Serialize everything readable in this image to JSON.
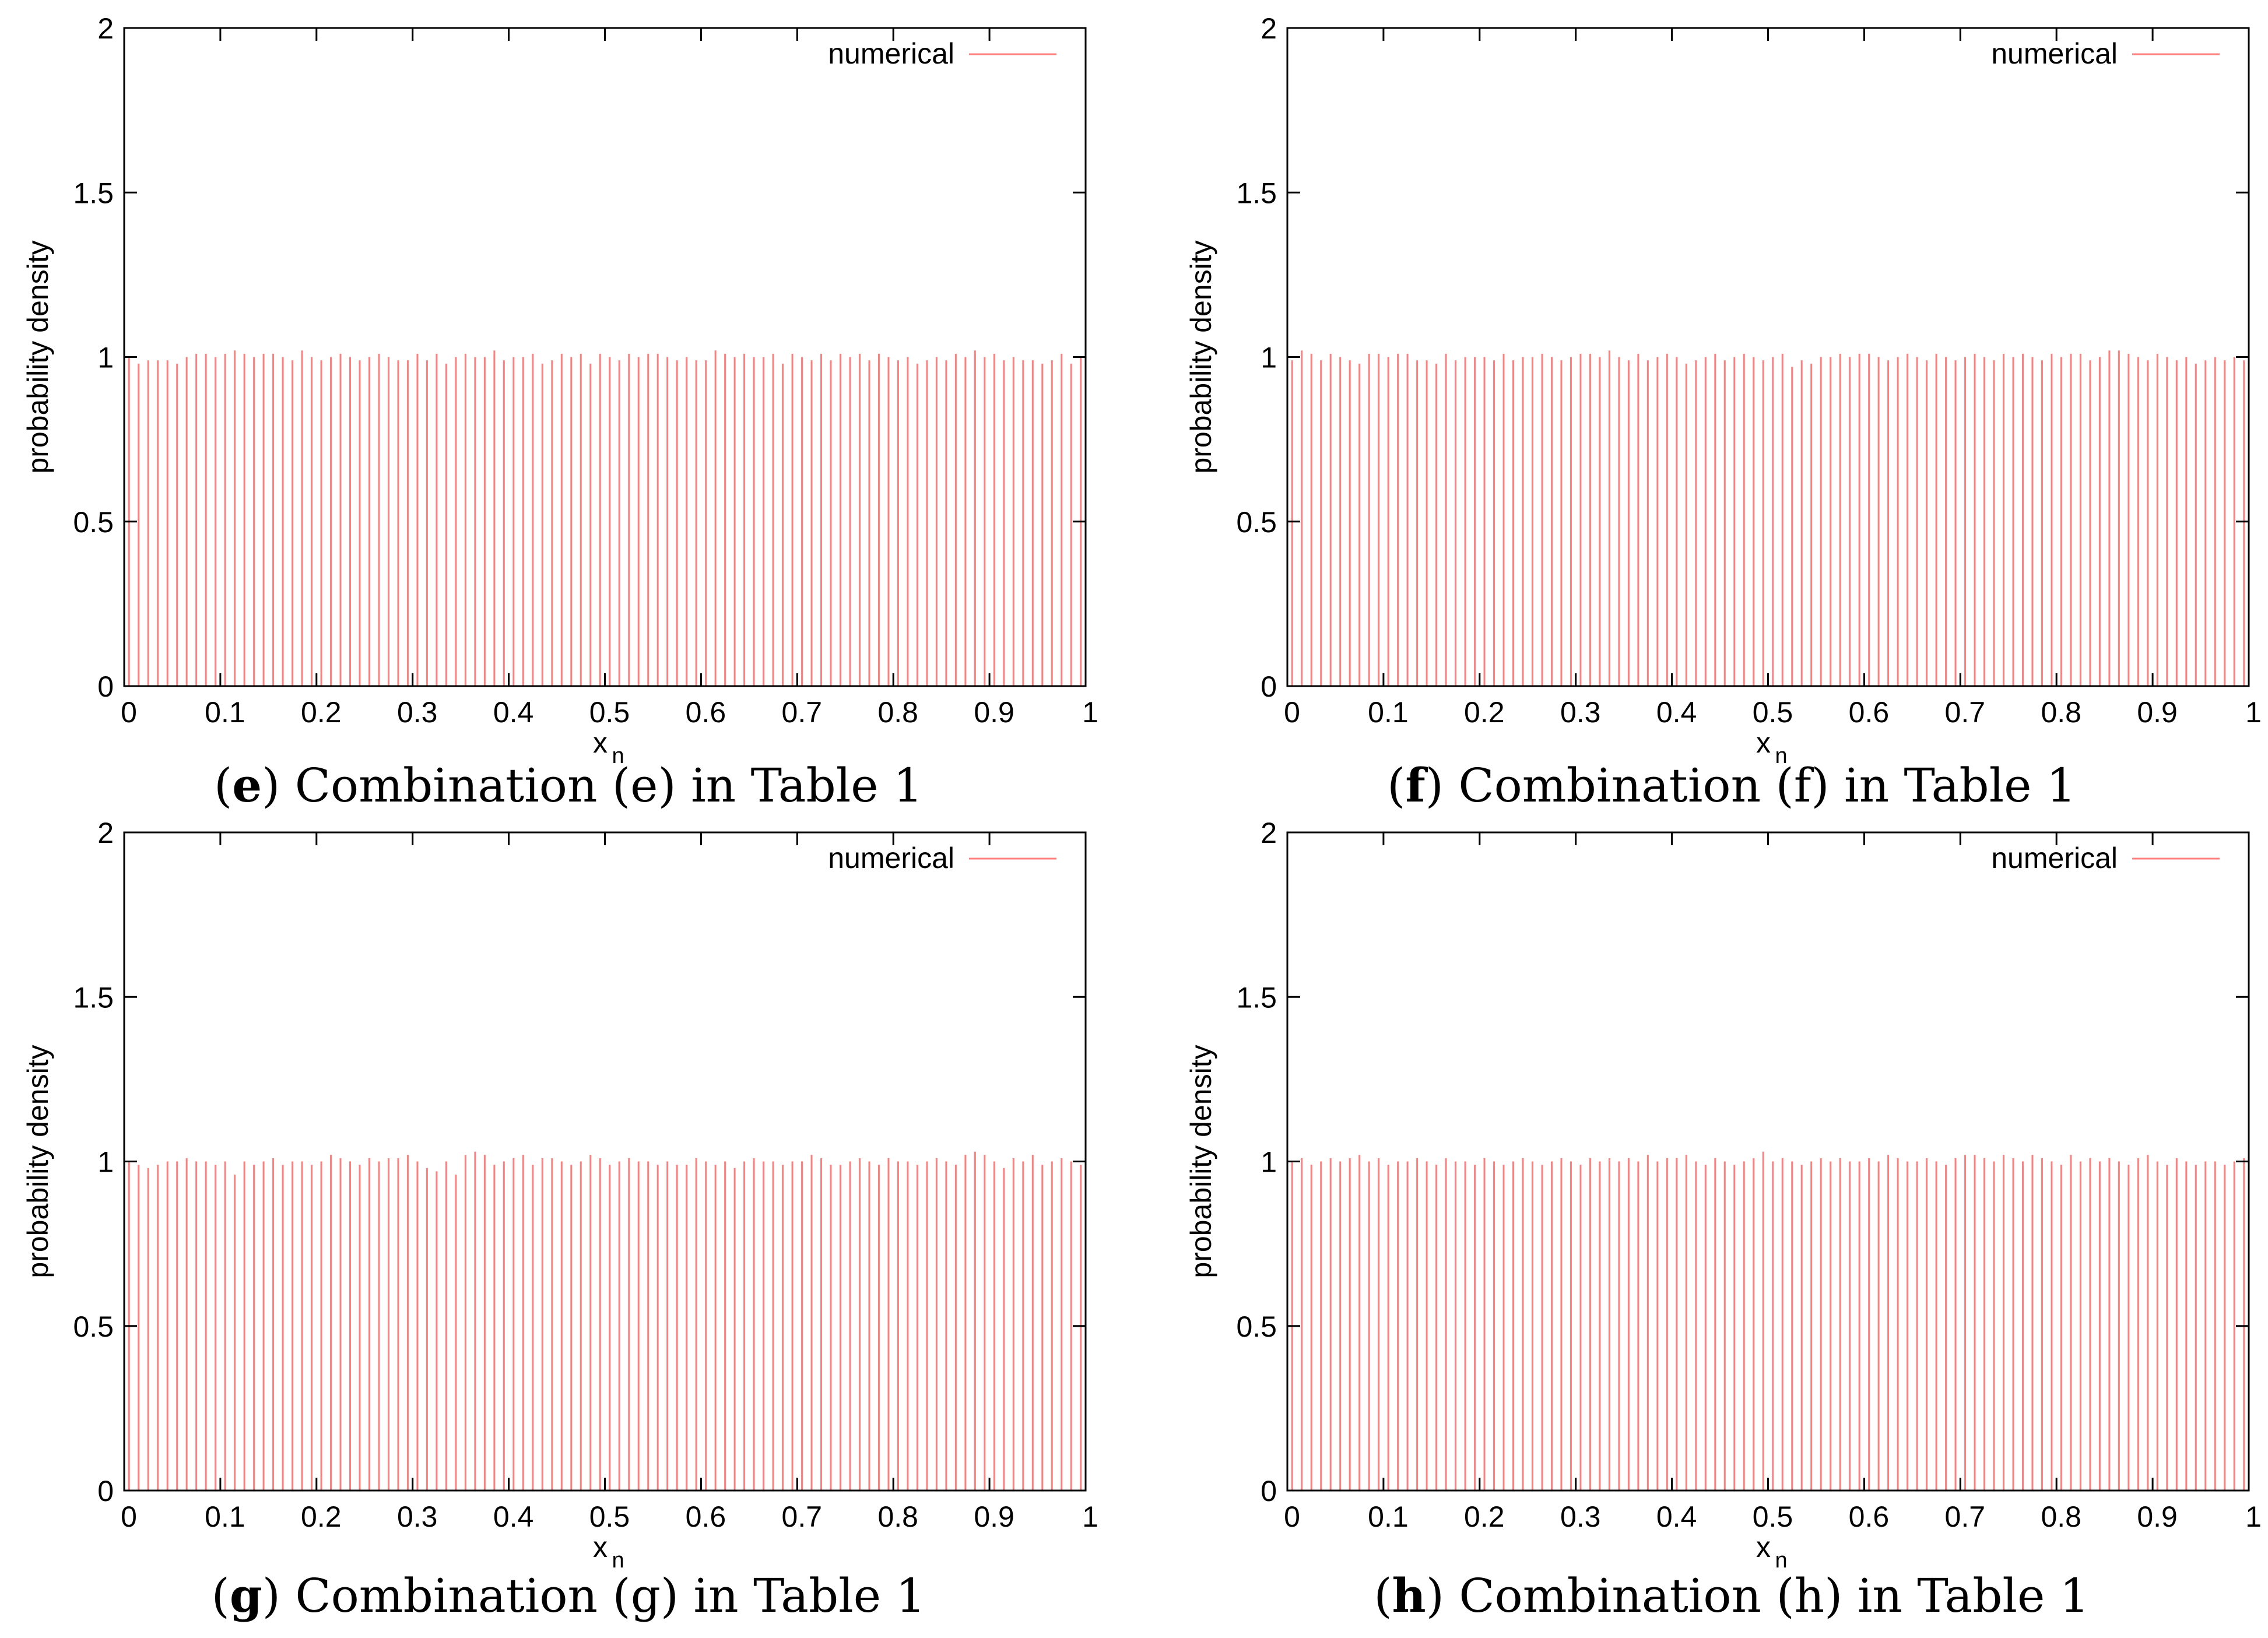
{
  "colors": {
    "series": "#ff7f7f",
    "axis": "#000000"
  },
  "chart_data": [
    {
      "type": "bar",
      "panel_letter": "e",
      "caption": "Combination (e) in Table 1",
      "xlabel": "x",
      "xlabel_sub": "n",
      "ylabel": "probability density",
      "xlim": [
        0,
        1
      ],
      "ylim": [
        0,
        2
      ],
      "xticks": [
        "0",
        "0.1",
        "0.2",
        "0.3",
        "0.4",
        "0.5",
        "0.6",
        "0.7",
        "0.8",
        "0.9",
        "1"
      ],
      "yticks": [
        "0",
        "0.5",
        "1",
        "1.5",
        "2"
      ],
      "legend": "numerical",
      "legend_position": "top-right",
      "bin_width": 0.01,
      "values": [
        1.0,
        0.98,
        0.99,
        0.99,
        0.99,
        0.98,
        1.0,
        1.01,
        1.01,
        1.0,
        1.01,
        1.02,
        1.01,
        1.0,
        1.01,
        1.01,
        1.0,
        0.99,
        1.02,
        1.0,
        0.99,
        1.0,
        1.01,
        1.0,
        0.99,
        1.0,
        1.01,
        1.0,
        0.99,
        0.99,
        1.01,
        0.99,
        1.01,
        0.98,
        1.0,
        1.01,
        1.0,
        1.0,
        1.02,
        0.99,
        1.0,
        1.0,
        1.01,
        0.98,
        0.99,
        1.01,
        1.0,
        1.01,
        0.98,
        1.01,
        1.0,
        0.99,
        1.01,
        1.0,
        1.01,
        1.01,
        1.0,
        0.99,
        1.0,
        0.99,
        0.99,
        1.02,
        1.01,
        1.0,
        1.01,
        1.0,
        1.0,
        1.01,
        0.98,
        1.01,
        1.0,
        0.99,
        1.01,
        0.99,
        1.01,
        1.0,
        1.01,
        0.99,
        1.01,
        1.0,
        0.99,
        1.0,
        0.98,
        0.99,
        1.0,
        0.99,
        1.01,
        1.0,
        1.02,
        1.0,
        1.01,
        0.99,
        1.0,
        0.99,
        0.99,
        0.98,
        0.99,
        1.01,
        0.98,
        1.0
      ]
    },
    {
      "type": "bar",
      "panel_letter": "f",
      "caption": "Combination (f) in Table 1",
      "xlabel": "x",
      "xlabel_sub": "n",
      "ylabel": "probability density",
      "xlim": [
        0,
        1
      ],
      "ylim": [
        0,
        2
      ],
      "xticks": [
        "0",
        "0.1",
        "0.2",
        "0.3",
        "0.4",
        "0.5",
        "0.6",
        "0.7",
        "0.8",
        "0.9",
        "1"
      ],
      "yticks": [
        "0",
        "0.5",
        "1",
        "1.5",
        "2"
      ],
      "legend": "numerical",
      "legend_position": "top-right",
      "bin_width": 0.01,
      "values": [
        0.99,
        1.02,
        1.01,
        0.99,
        1.01,
        1.0,
        0.99,
        0.98,
        1.01,
        1.01,
        1.0,
        1.01,
        1.01,
        0.99,
        0.99,
        0.98,
        1.01,
        0.99,
        1.0,
        1.0,
        1.0,
        0.99,
        1.01,
        0.99,
        1.0,
        1.0,
        1.01,
        1.0,
        0.99,
        1.0,
        1.01,
        1.01,
        1.0,
        1.02,
        1.0,
        0.99,
        1.01,
        0.99,
        1.0,
        1.01,
        1.0,
        0.98,
        0.99,
        1.0,
        1.01,
        0.99,
        1.0,
        1.01,
        1.0,
        0.99,
        1.0,
        1.01,
        0.97,
        0.99,
        0.98,
        1.0,
        1.0,
        1.01,
        1.0,
        1.01,
        1.01,
        1.0,
        0.99,
        1.0,
        1.01,
        1.0,
        0.99,
        1.01,
        1.0,
        0.99,
        1.0,
        1.01,
        1.0,
        0.99,
        1.01,
        1.0,
        1.01,
        1.0,
        0.99,
        1.01,
        1.0,
        1.01,
        1.01,
        0.99,
        1.0,
        1.02,
        1.02,
        1.01,
        1.0,
        0.99,
        1.01,
        1.0,
        0.99,
        1.0,
        0.98,
        0.99,
        1.0,
        0.99,
        1.0,
        0.99
      ]
    },
    {
      "type": "bar",
      "panel_letter": "g",
      "caption": "Combination (g) in Table 1",
      "xlabel": "x",
      "xlabel_sub": "n",
      "ylabel": "probability density",
      "xlim": [
        0,
        1
      ],
      "ylim": [
        0,
        2
      ],
      "xticks": [
        "0",
        "0.1",
        "0.2",
        "0.3",
        "0.4",
        "0.5",
        "0.6",
        "0.7",
        "0.8",
        "0.9",
        "1"
      ],
      "yticks": [
        "0",
        "0.5",
        "1",
        "1.5",
        "2"
      ],
      "legend": "numerical",
      "legend_position": "top-right",
      "bin_width": 0.01,
      "values": [
        1.0,
        0.99,
        0.98,
        0.99,
        1.0,
        1.0,
        1.01,
        1.0,
        1.0,
        0.99,
        1.0,
        0.96,
        1.0,
        0.99,
        1.0,
        1.01,
        0.99,
        1.0,
        1.0,
        0.99,
        1.0,
        1.02,
        1.01,
        1.0,
        0.99,
        1.01,
        1.0,
        1.01,
        1.01,
        1.02,
        1.0,
        0.98,
        0.97,
        1.0,
        0.96,
        1.02,
        1.03,
        1.02,
        0.99,
        1.0,
        1.01,
        1.02,
        0.99,
        1.01,
        1.01,
        1.0,
        0.99,
        1.0,
        1.02,
        1.01,
        0.99,
        1.0,
        1.01,
        1.0,
        1.0,
        0.99,
        1.0,
        0.99,
        0.99,
        1.01,
        1.0,
        0.99,
        1.0,
        0.98,
        1.0,
        1.01,
        1.0,
        1.0,
        0.99,
        1.0,
        1.0,
        1.02,
        1.01,
        0.99,
        0.99,
        1.0,
        1.01,
        1.0,
        0.99,
        1.01,
        1.0,
        1.0,
        0.99,
        1.0,
        1.01,
        1.0,
        0.99,
        1.02,
        1.03,
        1.02,
        1.0,
        0.98,
        1.01,
        1.0,
        1.02,
        0.99,
        1.0,
        1.01,
        1.0,
        0.99
      ]
    },
    {
      "type": "bar",
      "panel_letter": "h",
      "caption": "Combination (h) in Table 1",
      "xlabel": "x",
      "xlabel_sub": "n",
      "ylabel": "probability density",
      "xlim": [
        0,
        1
      ],
      "ylim": [
        0,
        2
      ],
      "xticks": [
        "0",
        "0.1",
        "0.2",
        "0.3",
        "0.4",
        "0.5",
        "0.6",
        "0.7",
        "0.8",
        "0.9",
        "1"
      ],
      "yticks": [
        "0",
        "0.5",
        "1",
        "1.5",
        "2"
      ],
      "legend": "numerical",
      "legend_position": "top-right",
      "bin_width": 0.01,
      "values": [
        1.0,
        1.01,
        0.99,
        1.0,
        1.01,
        1.0,
        1.01,
        1.02,
        1.0,
        1.01,
        0.99,
        1.0,
        1.0,
        1.01,
        1.0,
        0.99,
        1.01,
        1.0,
        1.0,
        0.99,
        1.01,
        1.0,
        0.99,
        1.0,
        1.01,
        1.0,
        0.99,
        1.0,
        1.01,
        1.0,
        0.99,
        1.01,
        1.0,
        1.01,
        1.0,
        1.01,
        1.0,
        1.02,
        1.0,
        1.01,
        1.01,
        1.02,
        1.0,
        0.99,
        1.01,
        1.0,
        0.99,
        1.0,
        1.01,
        1.03,
        1.0,
        1.01,
        1.0,
        0.99,
        1.0,
        1.01,
        1.0,
        1.01,
        1.0,
        1.0,
        1.01,
        1.0,
        1.02,
        1.01,
        1.0,
        1.0,
        1.01,
        1.0,
        0.99,
        1.01,
        1.02,
        1.02,
        1.01,
        1.0,
        1.02,
        1.01,
        1.0,
        1.02,
        1.01,
        1.0,
        0.99,
        1.02,
        1.0,
        1.01,
        1.0,
        1.01,
        1.0,
        0.99,
        1.01,
        1.02,
        1.0,
        0.99,
        1.01,
        1.0,
        0.99,
        1.0,
        1.0,
        0.99,
        1.0,
        1.01
      ]
    }
  ]
}
